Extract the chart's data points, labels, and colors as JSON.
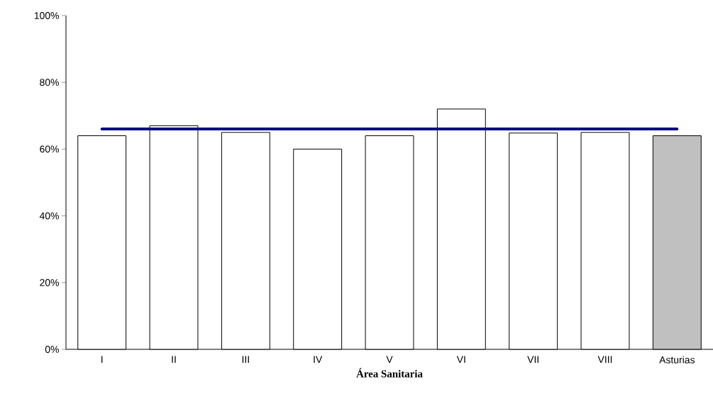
{
  "chart_data": {
    "type": "bar",
    "xlabel": "Área Sanitaria",
    "categories": [
      "I",
      "II",
      "III",
      "IV",
      "V",
      "VI",
      "VII",
      "VIII",
      "Asturias"
    ],
    "values": [
      64,
      67,
      65,
      60,
      64,
      72,
      64.8,
      65,
      64
    ],
    "colors": [
      "#ffffff",
      "#ffffff",
      "#ffffff",
      "#ffffff",
      "#ffffff",
      "#ffffff",
      "#ffffff",
      "#ffffff",
      "#c0c0c0"
    ],
    "ylim": [
      0,
      100
    ],
    "yticks": [
      {
        "value": 0,
        "label": "0%"
      },
      {
        "value": 20,
        "label": "20%"
      },
      {
        "value": 40,
        "label": "40%"
      },
      {
        "value": 60,
        "label": "60%"
      },
      {
        "value": 80,
        "label": "80%"
      },
      {
        "value": 100,
        "label": "100%"
      }
    ],
    "ref_lines": [
      {
        "axis": "y",
        "value": 66,
        "color": "#000080"
      }
    ],
    "grid": false
  }
}
